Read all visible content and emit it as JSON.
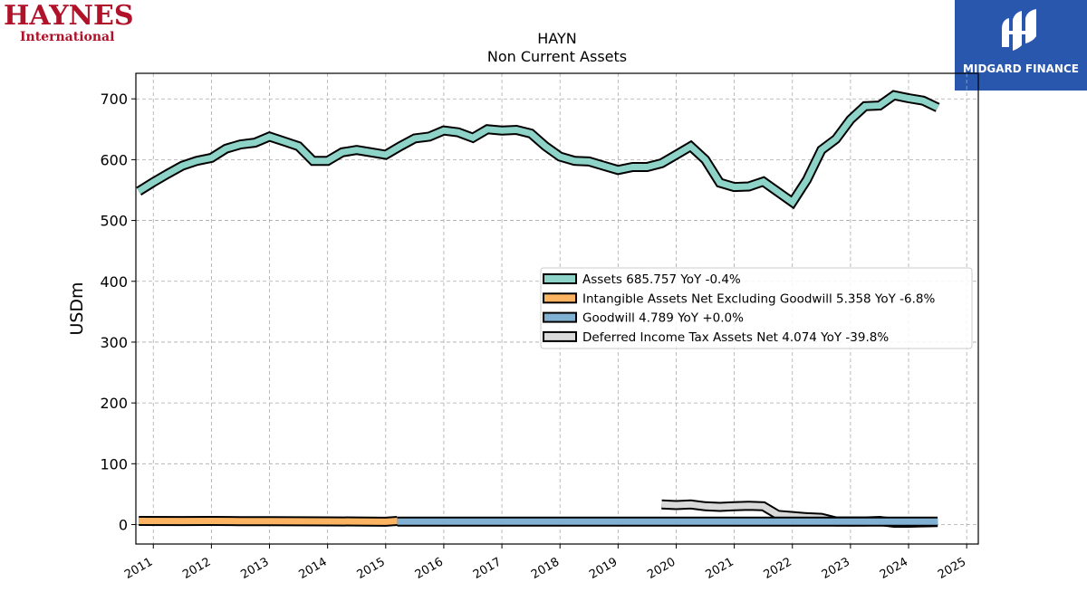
{
  "logos": {
    "left_main": "HAYNES",
    "left_sub": "International",
    "right_text": "MIDGARD FINANCE"
  },
  "chart_data": {
    "type": "line",
    "title": "HAYN",
    "subtitle": "Non Current  Assets",
    "ylabel": "USDm",
    "xlabel": "",
    "ylim": [
      -32,
      742
    ],
    "xlim": [
      2010.7,
      2025.2
    ],
    "yticks": [
      0,
      100,
      200,
      300,
      400,
      500,
      600,
      700
    ],
    "xticks": [
      "2011",
      "2012",
      "2013",
      "2014",
      "2015",
      "2016",
      "2017",
      "2018",
      "2019",
      "2020",
      "2021",
      "2022",
      "2023",
      "2024",
      "2025"
    ],
    "grid": true,
    "legend_position": "center-right",
    "series": [
      {
        "name": "Assets",
        "legend": "Assets  685.757 YoY -0.4%",
        "color": "#8dd3c7",
        "x": [
          2010.75,
          2011.0,
          2011.25,
          2011.5,
          2011.75,
          2012.0,
          2012.25,
          2012.5,
          2012.75,
          2013.0,
          2013.25,
          2013.5,
          2013.75,
          2014.0,
          2014.25,
          2014.5,
          2014.75,
          2015.0,
          2015.25,
          2015.5,
          2015.75,
          2016.0,
          2016.25,
          2016.5,
          2016.75,
          2017.0,
          2017.25,
          2017.5,
          2017.75,
          2018.0,
          2018.25,
          2018.5,
          2018.75,
          2019.0,
          2019.25,
          2019.5,
          2019.75,
          2020.0,
          2020.25,
          2020.5,
          2020.75,
          2021.0,
          2021.25,
          2021.5,
          2021.75,
          2022.0,
          2022.25,
          2022.5,
          2022.75,
          2023.0,
          2023.25,
          2023.5,
          2023.75,
          2024.0,
          2024.25,
          2024.5
        ],
        "values": [
          548,
          563,
          577,
          590,
          598,
          603,
          618,
          625,
          628,
          638,
          630,
          622,
          598,
          598,
          612,
          616,
          612,
          608,
          622,
          635,
          638,
          648,
          645,
          636,
          650,
          648,
          649,
          643,
          622,
          605,
          598,
          597,
          590,
          583,
          588,
          588,
          594,
          608,
          622,
          600,
          562,
          555,
          556,
          564,
          547,
          530,
          567,
          616,
          634,
          666,
          688,
          689,
          706,
          701,
          697,
          685.757
        ]
      },
      {
        "name": "Intangible Assets Net Excluding Goodwill",
        "legend": "Intangible Assets Net Excluding Goodwill  5.358 YoY -6.8%",
        "color": "#fdb462",
        "x": [
          2010.75,
          2011.5,
          2012.0,
          2012.5,
          2013.0,
          2013.5,
          2014.0,
          2014.5,
          2015.0,
          2015.2
        ],
        "values": [
          6.0,
          5.8,
          5.9,
          5.7,
          5.6,
          5.4,
          5.2,
          5.0,
          4.6,
          6.0
        ],
        "visible_until": 2015.2
      },
      {
        "name": "Goodwill",
        "legend": "Goodwill  4.789 YoY +0.0%",
        "color": "#80b1d3",
        "x": [
          2015.2,
          2016.0,
          2017.0,
          2018.0,
          2019.0,
          2020.0,
          2021.0,
          2022.0,
          2023.0,
          2024.0,
          2024.5
        ],
        "values": [
          4.8,
          4.8,
          4.8,
          4.8,
          4.8,
          4.8,
          4.8,
          4.8,
          4.8,
          4.8,
          4.789
        ]
      },
      {
        "name": "Deferred Income Tax Assets Net",
        "legend": "Deferred Income Tax Assets Net  4.074 YoY -39.8%",
        "color": "#d9d9d9",
        "x": [
          2019.75,
          2020.0,
          2020.25,
          2020.5,
          2020.75,
          2021.0,
          2021.25,
          2021.5,
          2021.75,
          2022.0,
          2022.25,
          2022.5,
          2022.75,
          2023.0,
          2023.25,
          2023.5,
          2023.75,
          2024.0,
          2024.25,
          2024.5
        ],
        "values": [
          33,
          32,
          33,
          30,
          29,
          30,
          31,
          30,
          16,
          14,
          12,
          11,
          5,
          5,
          5,
          6,
          3,
          3,
          3.5,
          4.074
        ]
      }
    ]
  }
}
